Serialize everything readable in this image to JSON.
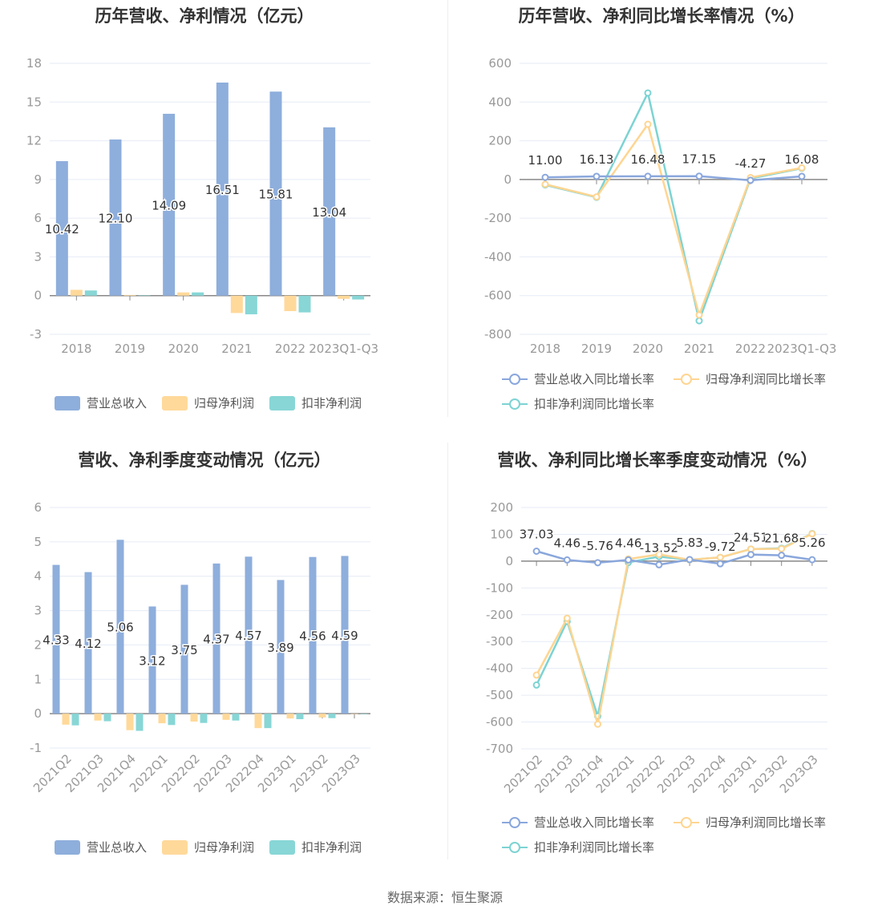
{
  "colors": {
    "revenue": "#8eaedc",
    "net_profit": "#ffd99a",
    "deducted": "#88d6d6",
    "revenue_line": "#8aa7dc",
    "net_line": "#ffd591",
    "deducted_line": "#7dd3d3"
  },
  "footer": "数据来源：恒生聚源",
  "chart_data": [
    {
      "type": "bar",
      "title": "历年营收、净利情况（亿元）",
      "categories": [
        "2018",
        "2019",
        "2020",
        "2021",
        "2022",
        "2023Q1-Q3"
      ],
      "ylim": [
        -3,
        18
      ],
      "yticks": [
        -3,
        0,
        3,
        6,
        9,
        12,
        15,
        18
      ],
      "series": [
        {
          "name": "营业总收入",
          "values": [
            10.42,
            12.1,
            14.09,
            16.51,
            15.81,
            13.04
          ],
          "labels": [
            "10.42",
            "12.10",
            "14.09",
            "16.51",
            "15.81",
            "13.04"
          ]
        },
        {
          "name": "归母净利润",
          "values": [
            0.45,
            0.05,
            0.25,
            -1.35,
            -1.2,
            -0.25
          ]
        },
        {
          "name": "扣非净利润",
          "values": [
            0.4,
            0.03,
            0.25,
            -1.45,
            -1.3,
            -0.3
          ]
        }
      ],
      "legend": "bottom",
      "grid": true
    },
    {
      "type": "line",
      "title": "历年营收、净利同比增长率情况（%）",
      "categories": [
        "2018",
        "2019",
        "2020",
        "2021",
        "2022",
        "2023Q1-Q3"
      ],
      "ylim": [
        -800,
        600
      ],
      "yticks": [
        -800,
        -600,
        -400,
        -200,
        0,
        200,
        400,
        600
      ],
      "series": [
        {
          "name": "营业总收入同比增长率",
          "values": [
            11.0,
            16.13,
            16.48,
            17.15,
            -4.27,
            16.08
          ],
          "labels": [
            "11.00",
            "16.13",
            "16.48",
            "17.15",
            "-4.27",
            "16.08"
          ]
        },
        {
          "name": "归母净利润同比增长率",
          "values": [
            -25,
            -90,
            285,
            -700,
            10,
            60
          ]
        },
        {
          "name": "扣非净利润同比增长率",
          "values": [
            -28,
            -92,
            447,
            -730,
            5,
            58
          ]
        }
      ],
      "legend": "bottom",
      "grid": true
    },
    {
      "type": "bar",
      "title": "营收、净利季度变动情况（亿元）",
      "categories": [
        "2021Q2",
        "2021Q3",
        "2021Q4",
        "2022Q1",
        "2022Q2",
        "2022Q3",
        "2022Q4",
        "2023Q1",
        "2023Q2",
        "2023Q3"
      ],
      "ylim": [
        -1,
        6
      ],
      "yticks": [
        -1,
        0,
        1,
        2,
        3,
        4,
        5,
        6
      ],
      "series": [
        {
          "name": "营业总收入",
          "values": [
            4.33,
            4.12,
            5.06,
            3.12,
            3.75,
            4.37,
            4.57,
            3.89,
            4.56,
            4.59
          ],
          "labels": [
            "4.33",
            "4.12",
            "5.06",
            "3.12",
            "3.75",
            "4.37",
            "4.57",
            "3.89",
            "4.56",
            "4.59"
          ]
        },
        {
          "name": "归母净利润",
          "values": [
            -0.32,
            -0.2,
            -0.48,
            -0.28,
            -0.23,
            -0.18,
            -0.42,
            -0.14,
            -0.11,
            -0.01
          ]
        },
        {
          "name": "扣非净利润",
          "values": [
            -0.34,
            -0.22,
            -0.5,
            -0.33,
            -0.27,
            -0.2,
            -0.42,
            -0.16,
            -0.13,
            -0.01
          ]
        }
      ],
      "legend": "bottom",
      "grid": true
    },
    {
      "type": "line",
      "title": "营收、净利同比增长率季度变动情况（%）",
      "categories": [
        "2021Q2",
        "2021Q3",
        "2021Q4",
        "2022Q1",
        "2022Q2",
        "2022Q3",
        "2022Q4",
        "2023Q1",
        "2023Q2",
        "2023Q3"
      ],
      "ylim": [
        -700,
        200
      ],
      "yticks": [
        -700,
        -600,
        -500,
        -400,
        -300,
        -200,
        -100,
        0,
        100,
        200
      ],
      "series": [
        {
          "name": "营业总收入同比增长率",
          "values": [
            37.03,
            4.46,
            -5.76,
            4.46,
            -13.52,
            5.83,
            -9.72,
            24.51,
            21.68,
            5.26
          ],
          "labels": [
            "37.03",
            "4.46",
            "-5.76",
            "4.46",
            "-13.52",
            "5.83",
            "-9.72",
            "24.51",
            "21.68",
            "5.26"
          ]
        },
        {
          "name": "归母净利润同比增长率",
          "values": [
            -425,
            -213,
            -608,
            8,
            25,
            5,
            14,
            45,
            46,
            102
          ]
        },
        {
          "name": "扣非净利润同比增长率",
          "values": [
            -462,
            -225,
            -578,
            -5,
            17,
            5,
            14,
            45,
            48,
            103
          ]
        }
      ],
      "legend": "bottom",
      "grid": true
    }
  ]
}
